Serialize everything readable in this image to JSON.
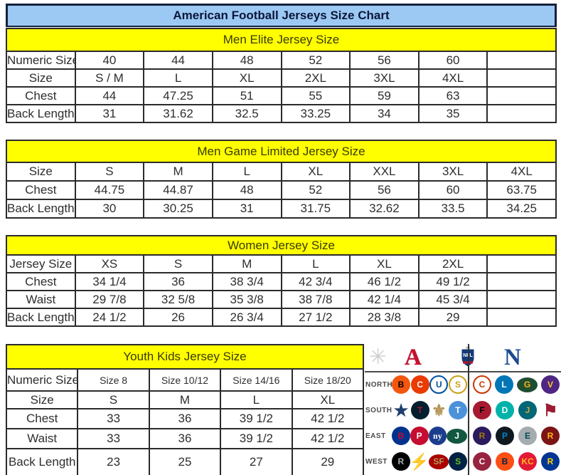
{
  "title": "American Football Jerseys Size Chart",
  "colors": {
    "title_bg": "#9CC9F3",
    "section_header_bg": "#FFFF00",
    "border": "#2B2B2B",
    "afc_red": "#C8102E",
    "nfc_blue": "#1B4B8F"
  },
  "tables": [
    {
      "id": "men-elite",
      "header": "Men Elite Jersey Size",
      "rows": [
        {
          "label": "Numeric Size",
          "cells": [
            "40",
            "44",
            "48",
            "52",
            "56",
            "60",
            ""
          ]
        },
        {
          "label": "Size",
          "cells": [
            "S / M",
            "L",
            "XL",
            "2XL",
            "3XL",
            "4XL",
            ""
          ]
        },
        {
          "label": "Chest",
          "cells": [
            "44",
            "47.25",
            "51",
            "55",
            "59",
            "63",
            ""
          ]
        },
        {
          "label": "Back Length",
          "cells": [
            "31",
            "31.62",
            "32.5",
            "33.25",
            "34",
            "35",
            ""
          ]
        }
      ]
    },
    {
      "id": "men-game-limited",
      "header": "Men Game Limited Jersey Size",
      "rows": [
        {
          "label": "Size",
          "cells": [
            "S",
            "M",
            "L",
            "XL",
            "XXL",
            "3XL",
            "4XL"
          ]
        },
        {
          "label": "Chest",
          "cells": [
            "44.75",
            "44.87",
            "48",
            "52",
            "56",
            "60",
            "63.75"
          ]
        },
        {
          "label": "Back Length",
          "cells": [
            "30",
            "30.25",
            "31",
            "31.75",
            "32.62",
            "33.5",
            "34.25"
          ]
        }
      ]
    },
    {
      "id": "women",
      "header": "Women Jersey Size",
      "rows": [
        {
          "label": "Jersey Size",
          "cells": [
            "XS",
            "S",
            "M",
            "L",
            "XL",
            "2XL",
            ""
          ]
        },
        {
          "label": "Chest",
          "cells": [
            "34 1/4",
            "36",
            "38 3/4",
            "42 3/4",
            "46 1/2",
            "49 1/2",
            ""
          ]
        },
        {
          "label": "Waist",
          "cells": [
            "29 7/8",
            "32 5/8",
            "35 3/8",
            "38 7/8",
            "42 1/4",
            "45 3/4",
            ""
          ]
        },
        {
          "label": "Back Length",
          "cells": [
            "24 1/2",
            "26",
            "26 3/4",
            "27 1/2",
            "28 3/8",
            "29",
            ""
          ]
        }
      ]
    },
    {
      "id": "youth",
      "header": "Youth Kids Jersey Size",
      "rows": [
        {
          "label": "Numeric Size",
          "cells": [
            "Size 8",
            "Size 10/12",
            "Size 14/16",
            "Size 18/20"
          ]
        },
        {
          "label": "Size",
          "cells": [
            "S",
            "M",
            "L",
            "XL"
          ]
        },
        {
          "label": "Chest",
          "cells": [
            "33",
            "36",
            "39 1/2",
            "42 1/2"
          ]
        },
        {
          "label": "Waist",
          "cells": [
            "33",
            "36",
            "39 1/2",
            "42 1/2"
          ]
        },
        {
          "label": "Back Length",
          "cells": [
            "23",
            "25",
            "27",
            "29"
          ]
        }
      ]
    }
  ],
  "nfl_panel": {
    "starburst_glyph": "✳",
    "afc_letter": "A",
    "shield_text": "NFL",
    "nfc_letter": "N",
    "divisions": [
      {
        "label": "NORTH",
        "afc": [
          {
            "team": "Bengals",
            "glyph": "B",
            "bg": "#F3570F",
            "fg": "#000000",
            "shape": "circle"
          },
          {
            "team": "Browns",
            "glyph": "C",
            "bg": "#EA3B00",
            "fg": "#FFFFFF",
            "shape": "circle"
          },
          {
            "team": "Colts",
            "glyph": "U",
            "bg": "#FFFFFF",
            "fg": "#0050A0",
            "shape": "ring"
          },
          {
            "team": "Steelers",
            "glyph": "S",
            "bg": "#FFFFFF",
            "fg": "#C9A018",
            "shape": "ring"
          }
        ],
        "nfc": [
          {
            "team": "Bears",
            "glyph": "C",
            "bg": "#FFFFFF",
            "fg": "#C83803",
            "shape": "ring"
          },
          {
            "team": "Lions",
            "glyph": "L",
            "bg": "#0076B6",
            "fg": "#FFFFFF",
            "shape": "circle"
          },
          {
            "team": "Packers",
            "glyph": "G",
            "bg": "#204E32",
            "fg": "#FFB612",
            "shape": "oval"
          },
          {
            "team": "Vikings",
            "glyph": "V",
            "bg": "#4F2683",
            "fg": "#FFC62F",
            "shape": "circle"
          }
        ]
      },
      {
        "label": "SOUTH",
        "afc": [
          {
            "team": "Cowboys",
            "glyph": "★",
            "bg": "none",
            "fg": "#1E3F6E",
            "shape": "glyph"
          },
          {
            "team": "Texans",
            "glyph": "T",
            "bg": "#03202F",
            "fg": "#A71930",
            "shape": "circle"
          },
          {
            "team": "Saints",
            "glyph": "⚜",
            "bg": "none",
            "fg": "#B5985A",
            "shape": "glyph"
          },
          {
            "team": "Titans",
            "glyph": "T",
            "bg": "#4B92DB",
            "fg": "#FFFFFF",
            "shape": "circle"
          }
        ],
        "nfc": [
          {
            "team": "Falcons",
            "glyph": "F",
            "bg": "#A71930",
            "fg": "#000000",
            "shape": "circle"
          },
          {
            "team": "Dolphins",
            "glyph": "D",
            "bg": "#00B2A9",
            "fg": "#FFFFFF",
            "shape": "circle"
          },
          {
            "team": "Jaguars",
            "glyph": "J",
            "bg": "#006778",
            "fg": "#D7A22A",
            "shape": "circle"
          },
          {
            "team": "Buccaneers",
            "glyph": "⚑",
            "bg": "none",
            "fg": "#9B1B30",
            "shape": "glyph"
          }
        ]
      },
      {
        "label": "EAST",
        "afc": [
          {
            "team": "Bills",
            "glyph": "B",
            "bg": "#00338D",
            "fg": "#C60C30",
            "shape": "circle"
          },
          {
            "team": "Patriots",
            "glyph": "P",
            "bg": "#C60C30",
            "fg": "#FFFFFF",
            "shape": "circle"
          },
          {
            "team": "Giants",
            "glyph": "ny",
            "bg": "#1A3E8C",
            "fg": "#FFFFFF",
            "shape": "serif"
          },
          {
            "team": "Jets",
            "glyph": "J",
            "bg": "#125740",
            "fg": "#FFFFFF",
            "shape": "oval"
          }
        ],
        "nfc": [
          {
            "team": "Ravens",
            "glyph": "R",
            "bg": "#2A1A5E",
            "fg": "#9E7C0C",
            "shape": "circle"
          },
          {
            "team": "Panthers",
            "glyph": "P",
            "bg": "#101820",
            "fg": "#0085CA",
            "shape": "circle"
          },
          {
            "team": "Eagles",
            "glyph": "E",
            "bg": "#A5ACAF",
            "fg": "#004C54",
            "shape": "circle"
          },
          {
            "team": "Redskins",
            "glyph": "R",
            "bg": "#7C1415",
            "fg": "#FFB612",
            "shape": "circle"
          }
        ]
      },
      {
        "label": "WEST",
        "afc": [
          {
            "team": "Raiders",
            "glyph": "R",
            "bg": "#000000",
            "fg": "#A5ACAF",
            "shape": "circle"
          },
          {
            "team": "Chargers",
            "glyph": "⚡",
            "bg": "none",
            "fg": "#F7C61A",
            "shape": "glyph"
          },
          {
            "team": "49ers",
            "glyph": "SF",
            "bg": "#AA0000",
            "fg": "#B3995D",
            "shape": "oval"
          },
          {
            "team": "Seahawks",
            "glyph": "S",
            "bg": "#002244",
            "fg": "#69BE28",
            "shape": "circle"
          }
        ],
        "nfc": [
          {
            "team": "Cardinals",
            "glyph": "C",
            "bg": "#97233F",
            "fg": "#FFFFFF",
            "shape": "circle"
          },
          {
            "team": "Broncos",
            "glyph": "B",
            "bg": "#FB4F14",
            "fg": "#002244",
            "shape": "circle"
          },
          {
            "team": "Chiefs",
            "glyph": "KC",
            "bg": "#E31837",
            "fg": "#FFB81C",
            "shape": "circle"
          },
          {
            "team": "Rams",
            "glyph": "R",
            "bg": "#003594",
            "fg": "#FFD100",
            "shape": "circle"
          }
        ]
      }
    ]
  }
}
